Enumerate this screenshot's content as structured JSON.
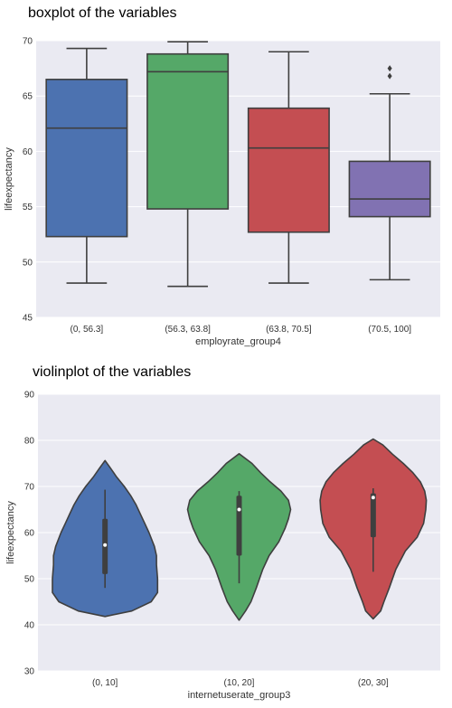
{
  "figures": {
    "boxplot_title": "boxplot of the variables",
    "violinplot_title": "violinplot of the variables"
  },
  "colors": {
    "background": "#eaeaf2",
    "grid": "#ffffff",
    "edge": "#3f3f3f",
    "tick_text": "#333333",
    "series": [
      "#4c72b0",
      "#55a868",
      "#c44e52",
      "#8172b2"
    ]
  },
  "chart_data": [
    {
      "type": "boxplot",
      "title": "boxplot of the variables",
      "xlabel": "employrate_group4",
      "ylabel": "lifeexpectancy",
      "ylim": [
        45,
        70
      ],
      "yticks": [
        45,
        50,
        55,
        60,
        65,
        70
      ],
      "grid": true,
      "categories": [
        "(0, 56.3]",
        "(56.3, 63.8]",
        "(63.8, 70.5]",
        "(70.5, 100]"
      ],
      "boxes": [
        {
          "category": "(0, 56.3]",
          "whisker_low": 48.1,
          "q1": 52.3,
          "median": 62.1,
          "q3": 66.5,
          "whisker_high": 69.3,
          "fliers": []
        },
        {
          "category": "(56.3, 63.8]",
          "whisker_low": 47.8,
          "q1": 54.8,
          "median": 67.2,
          "q3": 68.8,
          "whisker_high": 69.9,
          "fliers": []
        },
        {
          "category": "(63.8, 70.5]",
          "whisker_low": 48.1,
          "q1": 52.7,
          "median": 60.3,
          "q3": 63.9,
          "whisker_high": 69.0,
          "fliers": []
        },
        {
          "category": "(70.5, 100]",
          "whisker_low": 48.4,
          "q1": 54.1,
          "median": 55.7,
          "q3": 59.1,
          "whisker_high": 65.2,
          "fliers": [
            66.8,
            67.5
          ]
        }
      ]
    },
    {
      "type": "violin",
      "title": "violinplot of the variables",
      "xlabel": "internetuserate_group3",
      "ylabel": "lifeexpectancy",
      "ylim": [
        30,
        90
      ],
      "yticks": [
        30,
        40,
        50,
        60,
        70,
        80,
        90
      ],
      "grid": true,
      "categories": [
        "(0, 10]",
        "(10, 20]",
        "(20, 30]"
      ],
      "violins": [
        {
          "category": "(0, 10]",
          "min": 48.0,
          "q1": 51.0,
          "median": 57.3,
          "q3": 63.0,
          "max": 69.3,
          "density_profile": [
            [
              41.8,
              0.0
            ],
            [
              43.0,
              0.5
            ],
            [
              45.0,
              0.86
            ],
            [
              47.0,
              0.98
            ],
            [
              50.0,
              0.98
            ],
            [
              53.0,
              0.96
            ],
            [
              55.0,
              0.96
            ],
            [
              57.0,
              0.92
            ],
            [
              60.0,
              0.82
            ],
            [
              62.0,
              0.74
            ],
            [
              64.0,
              0.66
            ],
            [
              66.0,
              0.58
            ],
            [
              68.0,
              0.48
            ],
            [
              70.0,
              0.36
            ],
            [
              72.0,
              0.22
            ],
            [
              74.0,
              0.1
            ],
            [
              75.6,
              0.0
            ]
          ]
        },
        {
          "category": "(10, 20]",
          "min": 49.0,
          "q1": 55.0,
          "median": 65.0,
          "q3": 68.0,
          "max": 69.0,
          "density_profile": [
            [
              41.0,
              0.0
            ],
            [
              43.0,
              0.12
            ],
            [
              45.0,
              0.22
            ],
            [
              48.0,
              0.32
            ],
            [
              52.0,
              0.44
            ],
            [
              55.0,
              0.56
            ],
            [
              58.0,
              0.74
            ],
            [
              61.0,
              0.86
            ],
            [
              63.0,
              0.92
            ],
            [
              65.0,
              0.96
            ],
            [
              67.0,
              0.92
            ],
            [
              69.0,
              0.78
            ],
            [
              71.0,
              0.58
            ],
            [
              73.0,
              0.4
            ],
            [
              75.0,
              0.24
            ],
            [
              77.1,
              0.0
            ]
          ]
        },
        {
          "category": "(20, 30]",
          "min": 51.5,
          "q1": 59.0,
          "median": 67.6,
          "q3": 68.5,
          "max": 69.6,
          "density_profile": [
            [
              41.3,
              0.0
            ],
            [
              43.0,
              0.14
            ],
            [
              45.0,
              0.2
            ],
            [
              48.0,
              0.3
            ],
            [
              52.0,
              0.42
            ],
            [
              56.0,
              0.6
            ],
            [
              59.0,
              0.82
            ],
            [
              62.0,
              0.94
            ],
            [
              65.0,
              0.98
            ],
            [
              67.0,
              0.99
            ],
            [
              69.0,
              0.96
            ],
            [
              71.0,
              0.88
            ],
            [
              73.0,
              0.74
            ],
            [
              75.0,
              0.56
            ],
            [
              77.0,
              0.36
            ],
            [
              79.0,
              0.18
            ],
            [
              80.3,
              0.0
            ]
          ]
        }
      ]
    }
  ]
}
